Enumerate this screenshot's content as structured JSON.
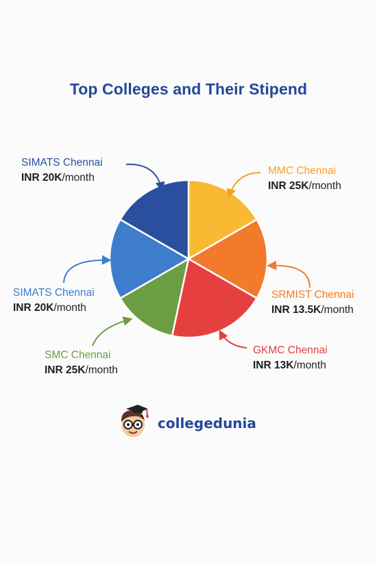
{
  "title": "Top Colleges and Their Stipend",
  "chart_data": {
    "type": "pie",
    "title": "Top Colleges and Their Stipend",
    "unit_suffix": "/month",
    "slices": [
      {
        "name": "MMC Chennai",
        "amount": "INR 25K",
        "value": 1,
        "color": "#f9b933"
      },
      {
        "name": "SRMIST Chennai",
        "amount": "INR 13.5K",
        "value": 1,
        "color": "#f27a2b"
      },
      {
        "name": "GKMC Chennai",
        "amount": "INR 13K",
        "value": 1.2,
        "color": "#e5403f"
      },
      {
        "name": "SMC Chennai",
        "amount": "INR 25K",
        "value": 0.8,
        "color": "#6c9e44"
      },
      {
        "name": "SIMATS Chennai",
        "amount": "INR 20K",
        "value": 1,
        "color": "#3e7ccc"
      },
      {
        "name": "SIMATS Chennai",
        "amount": "INR 20K",
        "value": 1,
        "color": "#2a4f9e"
      }
    ]
  },
  "brand": {
    "name": "collegedunia"
  }
}
